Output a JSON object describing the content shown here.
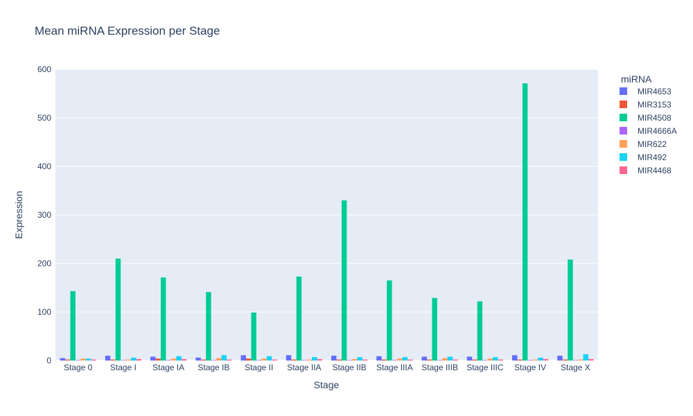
{
  "chart_data": {
    "type": "bar",
    "title": "Mean miRNA Expression per Stage",
    "xlabel": "Stage",
    "ylabel": "Expression",
    "ylim": [
      0,
      600
    ],
    "yticks": [
      0,
      100,
      200,
      300,
      400,
      500,
      600
    ],
    "grid": true,
    "legend_title": "miRNA",
    "legend_position": "right",
    "categories": [
      "Stage 0",
      "Stage I",
      "Stage IA",
      "Stage IB",
      "Stage II",
      "Stage IIA",
      "Stage IIB",
      "Stage IIIA",
      "Stage IIIB",
      "Stage IIIC",
      "Stage IV",
      "Stage X"
    ],
    "series": [
      {
        "name": "MIR4653",
        "color": "#636efa",
        "values": [
          5,
          10,
          8,
          6,
          11,
          11,
          10,
          9,
          8,
          8,
          11,
          10
        ]
      },
      {
        "name": "MIR3153",
        "color": "#EF553B",
        "values": [
          2,
          2,
          4,
          2,
          4,
          2,
          2,
          2,
          2,
          2,
          2,
          2
        ]
      },
      {
        "name": "MIR4508",
        "color": "#00cc96",
        "values": [
          143,
          210,
          171,
          141,
          99,
          173,
          330,
          165,
          129,
          122,
          571,
          208
        ]
      },
      {
        "name": "MIR4666A",
        "color": "#ab63fa",
        "values": [
          1,
          1,
          1,
          1,
          1,
          1,
          1,
          1,
          1,
          1,
          1,
          1
        ]
      },
      {
        "name": "MIR622",
        "color": "#FFA15A",
        "values": [
          4,
          2,
          4,
          5,
          4,
          2,
          3,
          4,
          5,
          4,
          2,
          2
        ]
      },
      {
        "name": "MIR492",
        "color": "#19d3f3",
        "values": [
          4,
          6,
          9,
          11,
          9,
          7,
          7,
          7,
          8,
          7,
          6,
          13
        ]
      },
      {
        "name": "MIR4468",
        "color": "#FF6692",
        "values": [
          2,
          3,
          3,
          2,
          2,
          3,
          2,
          2,
          2,
          2,
          3,
          3
        ]
      }
    ]
  }
}
